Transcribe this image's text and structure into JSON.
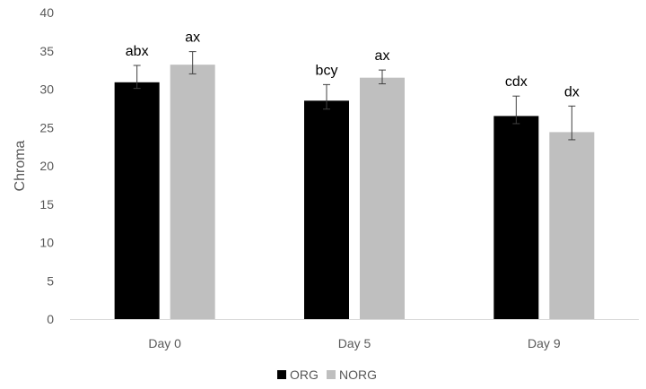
{
  "chart_data": {
    "type": "bar",
    "title": "",
    "xlabel": "",
    "ylabel": "Chroma",
    "ylim": [
      0,
      40
    ],
    "yticks": [
      0,
      5,
      10,
      15,
      20,
      25,
      30,
      35,
      40
    ],
    "grid": false,
    "legend_position": "bottom",
    "categories": [
      "Day 0",
      "Day 5",
      "Day 9"
    ],
    "series": [
      {
        "name": "ORG",
        "color": "#000000",
        "values": [
          30.9,
          28.5,
          26.5
        ],
        "error_low": [
          30.1,
          27.4,
          25.5
        ],
        "error_high": [
          33.1,
          30.6,
          29.1
        ],
        "labels": [
          "abx",
          "bcy",
          "cdx"
        ]
      },
      {
        "name": "NORG",
        "color": "#bfbfbf",
        "values": [
          33.2,
          31.5,
          24.4
        ],
        "error_low": [
          32.0,
          30.7,
          23.4
        ],
        "error_high": [
          34.9,
          32.5,
          27.8
        ],
        "labels": [
          "ax",
          "ax",
          "dx"
        ]
      }
    ]
  }
}
